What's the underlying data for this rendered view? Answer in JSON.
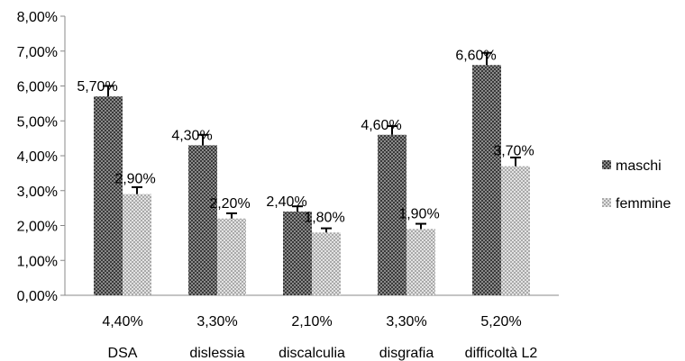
{
  "chart_data": {
    "type": "bar",
    "categories": [
      "DSA",
      "dislessia",
      "discalculia",
      "disgrafia",
      "difficoltà L2"
    ],
    "category_totals": [
      "4,40%",
      "3,30%",
      "2,10%",
      "3,30%",
      "5,20%"
    ],
    "series": [
      {
        "name": "maschi",
        "values": [
          5.7,
          4.3,
          2.4,
          4.6,
          6.6
        ],
        "labels": [
          "5,70%",
          "4,30%",
          "2,40%",
          "4,60%",
          "6,60%"
        ],
        "error": [
          0.3,
          0.3,
          0.15,
          0.25,
          0.35
        ],
        "pattern": "dark-checker"
      },
      {
        "name": "femmine",
        "values": [
          2.9,
          2.2,
          1.8,
          1.9,
          3.7
        ],
        "labels": [
          "2,90%",
          "2,20%",
          "1,80%",
          "1,90%",
          "3,70%"
        ],
        "error": [
          0.2,
          0.15,
          0.12,
          0.15,
          0.25
        ],
        "pattern": "light-checker"
      }
    ],
    "y_ticks": [
      "0,00%",
      "1,00%",
      "2,00%",
      "3,00%",
      "4,00%",
      "5,00%",
      "6,00%",
      "7,00%",
      "8,00%"
    ],
    "ylim": [
      0,
      8
    ],
    "legend_position": "right",
    "grid": false,
    "colors": {
      "dark": "#3a3a3a",
      "light": "#b8b8b8",
      "axis": "#888888"
    }
  }
}
